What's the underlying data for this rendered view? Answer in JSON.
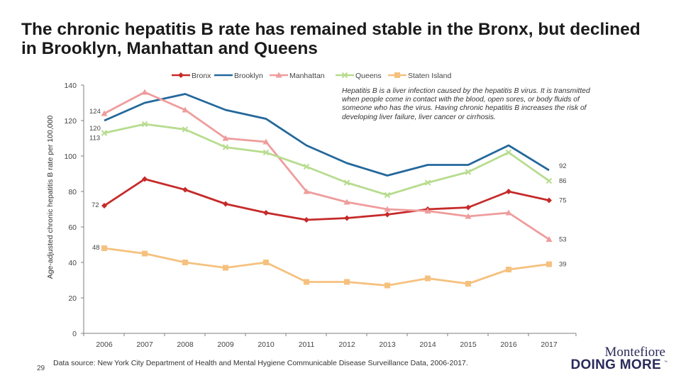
{
  "slide": {
    "title": "The chronic hepatitis B rate has remained stable in the Bronx, but declined in Brooklyn, Manhattan and Queens",
    "annotation": "Hepatitis B is a liver infection caused by the hepatitis B virus. It is transmitted when people come in contact with the blood, open sores, or body fluids of someone who has the virus. Having chronic hepatitis B increases the risk of developing liver failure, liver cancer or cirrhosis.",
    "source": "Data source: New York City Department of Health and Mental Hygiene Communicable Disease Surveillance Data, 2006-2017.",
    "page_number": "29",
    "brand": {
      "name": "Montefiore",
      "tagline": "DOING MORE",
      "tm": "™"
    }
  },
  "chart_data": {
    "type": "line",
    "title": "",
    "xlabel": "",
    "ylabel": "Age-adjusted chronic hepatitis B rate per 100,000",
    "x": [
      "2006",
      "2007",
      "2008",
      "2009",
      "2010",
      "2011",
      "2012",
      "2013",
      "2014",
      "2015",
      "2016",
      "2017"
    ],
    "ylim": [
      0,
      140
    ],
    "yticks": [
      "0",
      "20",
      "40",
      "60",
      "80",
      "100",
      "120",
      "140"
    ],
    "grid": false,
    "legend_position": "top",
    "series": [
      {
        "name": "Bronx",
        "color": "#c62a2a",
        "marker": "diamond",
        "values": [
          72,
          87,
          81,
          73,
          68,
          64,
          65,
          67,
          70,
          71,
          80,
          75
        ],
        "labels": {
          "first": "72",
          "last": "75"
        }
      },
      {
        "name": "Brooklyn",
        "color": "#23689b",
        "marker": "none",
        "values": [
          120,
          130,
          135,
          126,
          121,
          106,
          96,
          89,
          95,
          95,
          106,
          92
        ],
        "labels": {
          "first": "120",
          "last": "92"
        }
      },
      {
        "name": "Manhattan",
        "color": "#ef9c9c",
        "marker": "triangle",
        "values": [
          124,
          136,
          126,
          110,
          108,
          80,
          74,
          70,
          69,
          66,
          68,
          53
        ],
        "labels": {
          "first": "124",
          "last": "53"
        }
      },
      {
        "name": "Queens",
        "color": "#b7dc8e",
        "marker": "x",
        "values": [
          113,
          118,
          115,
          105,
          102,
          94,
          85,
          78,
          85,
          91,
          102,
          86
        ],
        "labels": {
          "first": "113",
          "last": "86"
        }
      },
      {
        "name": "Staten Island",
        "color": "#f5c17e",
        "marker": "square",
        "values": [
          48,
          45,
          40,
          37,
          40,
          29,
          29,
          27,
          31,
          28,
          36,
          39
        ],
        "labels": {
          "first": "48",
          "last": "39"
        }
      }
    ]
  }
}
